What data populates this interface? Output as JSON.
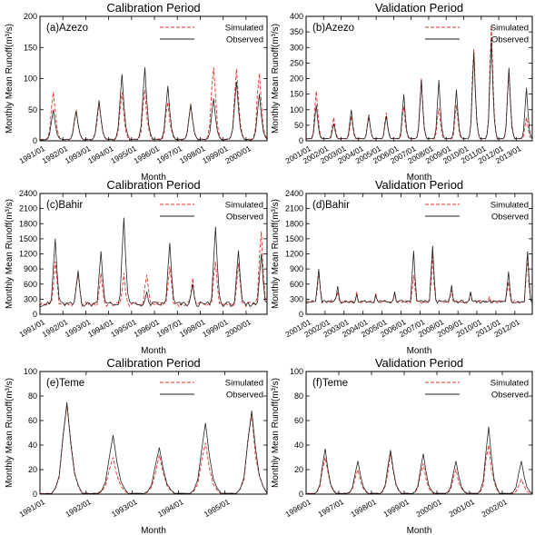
{
  "figure": {
    "ylabel": "Monthly Mean Runoff(m³/s)",
    "xlabel": "Month",
    "legend": [
      "Simulated",
      "Observed"
    ],
    "colors": {
      "simulated": "#e8312a",
      "observed": "#222222"
    }
  },
  "chart_data": [
    {
      "id": "a",
      "type": "line",
      "title": "Calibration Period",
      "label": "(a)Azezo",
      "xlabel": "Month",
      "ylabel": "Monthly Mean Runoff(m³/s)",
      "ylim": [
        0,
        200
      ],
      "yticks": [
        0,
        50,
        100,
        150,
        200
      ],
      "xstart": "1991/01",
      "months": 120,
      "xticks": [
        "1991/01",
        "1992/01",
        "1993/01",
        "1994/01",
        "1995/01",
        "1996/01",
        "1997/01",
        "1998/01",
        "1999/01",
        "2000/01"
      ],
      "xtick_months": [
        0,
        12,
        24,
        36,
        48,
        60,
        72,
        84,
        96,
        108
      ],
      "peak_month": 7,
      "base": [
        1,
        3
      ],
      "legend": "top-right",
      "series": [
        {
          "name": "Simulated",
          "peaks": [
            78,
            50,
            62,
            78,
            82,
            62,
            60,
            118,
            115,
            108
          ]
        },
        {
          "name": "Observed",
          "peaks": [
            50,
            48,
            65,
            107,
            118,
            88,
            58,
            68,
            95,
            75
          ]
        }
      ]
    },
    {
      "id": "b",
      "type": "line",
      "title": "Validation Period",
      "label": "(b)Azezo",
      "xlabel": "Month",
      "ylabel": "Monthly Mean Runoff(m³/s)",
      "ylim": [
        0,
        400
      ],
      "yticks": [
        0,
        50,
        100,
        150,
        200,
        250,
        300,
        350,
        400
      ],
      "xstart": "2001/01",
      "months": 156,
      "xticks": [
        "2001/01",
        "2002/01",
        "2003/01",
        "2004/01",
        "2005/01",
        "2006/01",
        "2007/01",
        "2008/01",
        "2009/01",
        "2010/01",
        "2011/01",
        "2012/01",
        "2013/01"
      ],
      "xtick_months": [
        0,
        12,
        24,
        36,
        48,
        60,
        72,
        84,
        96,
        108,
        120,
        132,
        144
      ],
      "peak_month": 7,
      "base": [
        6,
        8
      ],
      "legend": "top-right",
      "series": [
        {
          "name": "Simulated",
          "peaks": [
            160,
            75,
            80,
            85,
            90,
            110,
            200,
            105,
            115,
            295,
            370,
            220,
            75
          ]
        },
        {
          "name": "Observed",
          "peaks": [
            115,
            55,
            100,
            80,
            80,
            150,
            195,
            195,
            165,
            285,
            325,
            235,
            170
          ]
        }
      ]
    },
    {
      "id": "c",
      "type": "line",
      "title": "Calibration Period",
      "label": "(c)Bahir",
      "xlabel": "Month",
      "ylabel": "Monthly Mean Runoff(m³/s)",
      "ylim": [
        0,
        2400
      ],
      "yticks": [
        0,
        300,
        600,
        900,
        1200,
        1500,
        1800,
        2100,
        2400
      ],
      "xstart": "1991/01",
      "months": 120,
      "xticks": [
        "1991/01",
        "1992/01",
        "1993/01",
        "1994/01",
        "1995/01",
        "1996/01",
        "1997/01",
        "1998/01",
        "1999/01",
        "2000/01"
      ],
      "xtick_months": [
        0,
        12,
        24,
        36,
        48,
        60,
        72,
        84,
        96,
        108
      ],
      "peak_month": 8,
      "base": [
        150,
        250
      ],
      "legend": "top-right",
      "series": [
        {
          "name": "Simulated",
          "peaks": [
            1050,
            800,
            820,
            820,
            780,
            950,
            720,
            1050,
            1020,
            1650
          ]
        },
        {
          "name": "Observed",
          "peaks": [
            1500,
            870,
            1250,
            1920,
            450,
            1420,
            600,
            1740,
            1270,
            1200
          ]
        }
      ]
    },
    {
      "id": "d",
      "type": "line",
      "title": "Validation Period",
      "label": "(d)Bahir",
      "xlabel": "Month",
      "ylabel": "Monthly Mean Runoff(m³/s)",
      "ylim": [
        0,
        2400
      ],
      "yticks": [
        0,
        300,
        600,
        900,
        1200,
        1500,
        1800,
        2100,
        2400
      ],
      "xstart": "2001/01",
      "months": 144,
      "xticks": [
        "2001/01",
        "2002/01",
        "2003/01",
        "2004/01",
        "2005/01",
        "2006/01",
        "2007/01",
        "2008/01",
        "2009/01",
        "2010/01",
        "2011/01",
        "2012/01"
      ],
      "xtick_months": [
        0,
        12,
        24,
        36,
        48,
        60,
        72,
        84,
        96,
        108,
        120,
        132
      ],
      "peak_month": 8,
      "base": [
        220,
        280
      ],
      "legend": "top-right",
      "series": [
        {
          "name": "Simulated",
          "peaks": [
            850,
            450,
            450,
            420,
            420,
            780,
            1200,
            480,
            400,
            350,
            650,
            1150
          ]
        },
        {
          "name": "Observed",
          "peaks": [
            900,
            560,
            400,
            380,
            450,
            1260,
            1360,
            580,
            450,
            280,
            850,
            1250
          ]
        }
      ]
    },
    {
      "id": "e",
      "type": "line",
      "title": "Calibration Period",
      "label": "(e)Teme",
      "xlabel": "Month",
      "ylabel": "Monthly Mean Runoff(m³/s)",
      "ylim": [
        0,
        100
      ],
      "yticks": [
        0,
        20,
        40,
        60,
        80,
        100
      ],
      "xstart": "1991/01",
      "months": 60,
      "xticks": [
        "1991/01",
        "1992/01",
        "1993/01",
        "1994/01",
        "1995/01"
      ],
      "xtick_months": [
        0,
        12,
        24,
        36,
        48
      ],
      "peak_month": 7,
      "base": [
        0.3,
        0.8
      ],
      "legend": "top-right",
      "series": [
        {
          "name": "Simulated",
          "peaks": [
            72,
            30,
            32,
            42,
            65
          ]
        },
        {
          "name": "Observed",
          "peaks": [
            75,
            48,
            38,
            58,
            68
          ]
        }
      ]
    },
    {
      "id": "f",
      "type": "line",
      "title": "Validation Period",
      "label": "(f)Teme",
      "xlabel": "Month",
      "ylabel": "Monthly Mean Runoff(m³/s)",
      "ylim": [
        0,
        100
      ],
      "yticks": [
        0,
        20,
        40,
        60,
        80,
        100
      ],
      "xstart": "1996/01",
      "months": 84,
      "xticks": [
        "1996/01",
        "1997/01",
        "1998/01",
        "1999/01",
        "2000/01",
        "2001/01",
        "2002/01"
      ],
      "xtick_months": [
        0,
        12,
        24,
        36,
        48,
        60,
        72
      ],
      "peak_month": 7,
      "base": [
        0.3,
        0.8
      ],
      "legend": "top-right",
      "series": [
        {
          "name": "Simulated",
          "peaks": [
            30,
            20,
            33,
            25,
            20,
            40,
            12
          ]
        },
        {
          "name": "Observed",
          "peaks": [
            37,
            27,
            36,
            33,
            27,
            55,
            27
          ]
        }
      ]
    }
  ]
}
